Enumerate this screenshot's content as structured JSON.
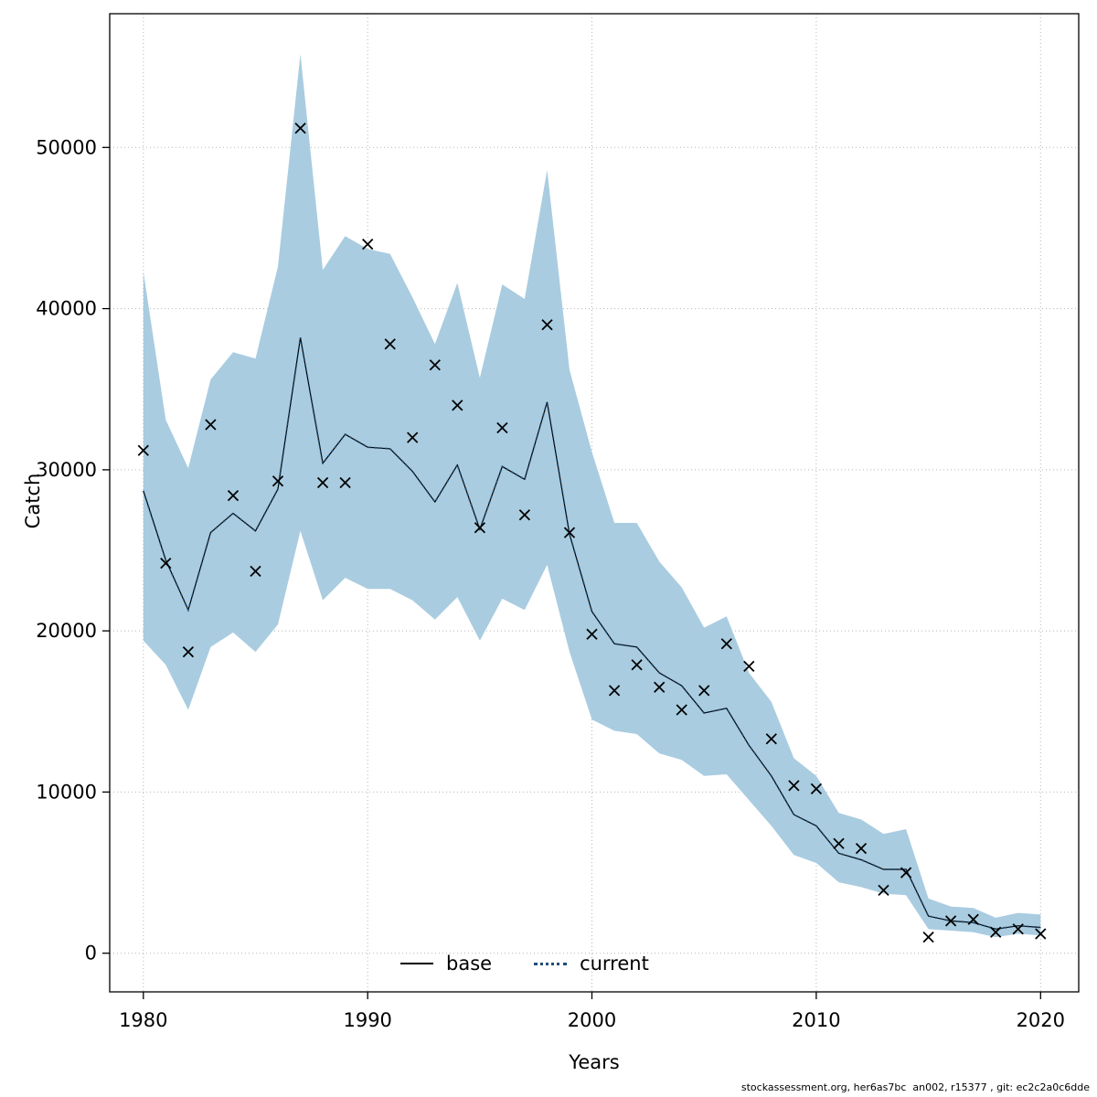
{
  "figure": {
    "xlabel": "Years",
    "ylabel": "Catch",
    "credit": "stockassessment.org, her6as7bc  an002, r15377 , git: ec2c2a0c6dde"
  },
  "chart_data": {
    "type": "line",
    "title": "",
    "xlabel": "Years",
    "ylabel": "Catch",
    "xlim": [
      1978.5,
      2021.7
    ],
    "ylim": [
      -2400,
      58300
    ],
    "x_ticks": [
      1980,
      1990,
      2000,
      2010,
      2020
    ],
    "y_ticks": [
      0,
      10000,
      20000,
      30000,
      40000,
      50000
    ],
    "grid": true,
    "legend_position": "bottom-center-inside",
    "colors": {
      "band": "#a9cce0",
      "current_line": "#1f4e79",
      "base_line": "#000000",
      "marker": "#000000",
      "grid": "#b5b5b5",
      "border": "#000000"
    },
    "years": [
      1980,
      1981,
      1982,
      1983,
      1984,
      1985,
      1986,
      1987,
      1988,
      1989,
      1990,
      1991,
      1992,
      1993,
      1994,
      1995,
      1996,
      1997,
      1998,
      1999,
      2000,
      2001,
      2002,
      2003,
      2004,
      2005,
      2006,
      2007,
      2008,
      2009,
      2010,
      2011,
      2012,
      2013,
      2014,
      2015,
      2016,
      2017,
      2018,
      2019,
      2020
    ],
    "series": [
      {
        "name": "base",
        "style": "solid",
        "color": "#000000",
        "values": [
          28700,
          24400,
          21300,
          26100,
          27300,
          26200,
          28800,
          38200,
          30400,
          32200,
          31400,
          31300,
          29900,
          28000,
          30300,
          26300,
          30200,
          29400,
          34200,
          26000,
          21200,
          19200,
          19000,
          17400,
          16600,
          14900,
          15200,
          12900,
          11000,
          8600,
          7900,
          6200,
          5800,
          5200,
          5200,
          2300,
          2000,
          1900,
          1500,
          1700,
          1600
        ]
      },
      {
        "name": "current",
        "style": "dotted",
        "color": "#1f4e79",
        "values": [
          28700,
          24400,
          21300,
          26100,
          27300,
          26200,
          28800,
          38200,
          30400,
          32200,
          31400,
          31300,
          29900,
          28000,
          30300,
          26300,
          30200,
          29400,
          34200,
          26000,
          21200,
          19200,
          19000,
          17400,
          16600,
          14900,
          15200,
          12900,
          11000,
          8600,
          7900,
          6200,
          5800,
          5200,
          5200,
          2300,
          2000,
          1900,
          1500,
          1700,
          1600
        ]
      },
      {
        "name": "observed_catch",
        "style": "x-marker",
        "color": "#000000",
        "values": [
          31200,
          24200,
          18700,
          32800,
          28400,
          23700,
          29300,
          51200,
          29200,
          29200,
          44000,
          37800,
          32000,
          36500,
          34000,
          26400,
          32600,
          27200,
          39000,
          26100,
          19800,
          16300,
          17900,
          16500,
          15100,
          16300,
          19200,
          17800,
          13300,
          10400,
          10200,
          6800,
          6500,
          3900,
          5000,
          1000,
          2000,
          2100,
          1300,
          1500,
          1200
        ]
      }
    ],
    "band": {
      "name": "current_confidence_interval",
      "color": "#a9cce0",
      "upper": [
        42300,
        33100,
        30100,
        35600,
        37300,
        36900,
        42600,
        55800,
        42400,
        44500,
        43700,
        43400,
        40700,
        37800,
        41600,
        35700,
        41500,
        40600,
        48600,
        36200,
        31100,
        26700,
        26700,
        24300,
        22700,
        20200,
        20900,
        17400,
        15600,
        12100,
        11000,
        8700,
        8300,
        7400,
        7700,
        3400,
        2900,
        2800,
        2200,
        2500,
        2400
      ],
      "lower": [
        19400,
        17900,
        15100,
        19000,
        19900,
        18700,
        20400,
        26200,
        21900,
        23300,
        22600,
        22600,
        21900,
        20700,
        22100,
        19400,
        22000,
        21300,
        24100,
        18700,
        14500,
        13800,
        13600,
        12400,
        12000,
        11000,
        11100,
        9500,
        7900,
        6100,
        5600,
        4400,
        4100,
        3700,
        3600,
        1500,
        1400,
        1300,
        1000,
        1200,
        1100
      ]
    },
    "legend": [
      {
        "label": "base"
      },
      {
        "label": "current"
      }
    ]
  }
}
